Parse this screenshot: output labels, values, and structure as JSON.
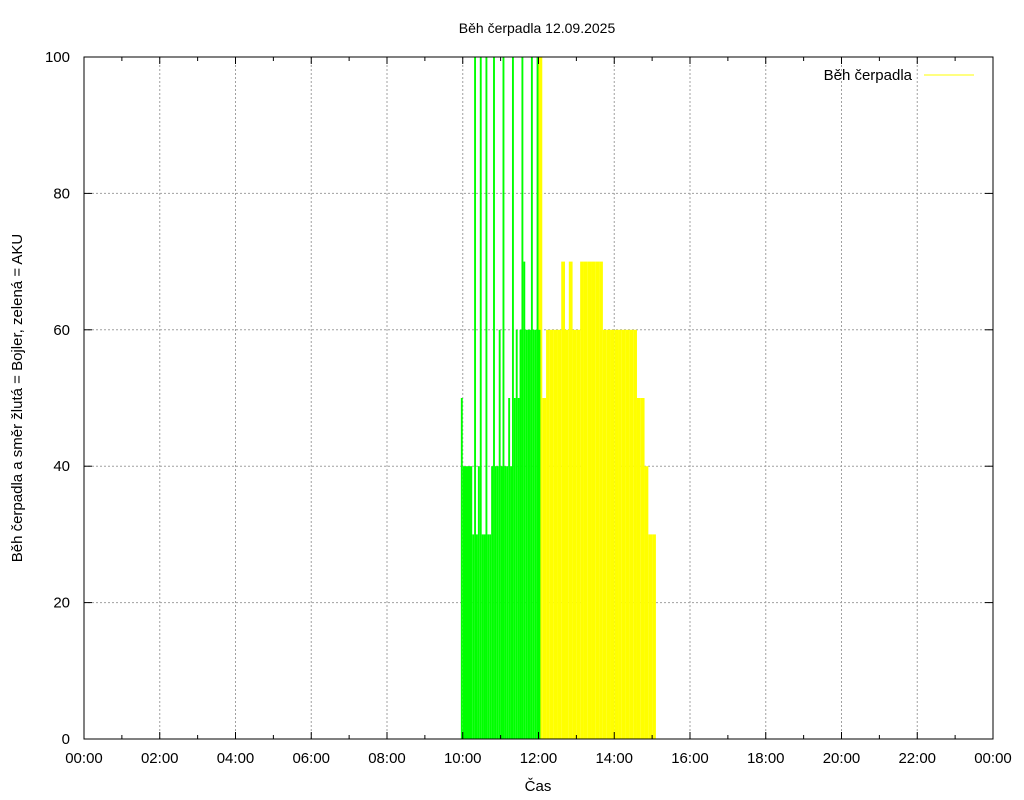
{
  "chart_data": {
    "type": "bar",
    "title": "Běh čerpadla 12.09.2025",
    "xlabel": "Čas",
    "ylabel": "Běh čerpadla a směr žlutá = Bojler, zelená = AKU",
    "x_tick_labels": [
      "00:00",
      "02:00",
      "04:00",
      "06:00",
      "08:00",
      "10:00",
      "12:00",
      "14:00",
      "16:00",
      "18:00",
      "20:00",
      "22:00",
      "00:00"
    ],
    "y_tick_labels": [
      "0",
      "20",
      "40",
      "60",
      "80",
      "100"
    ],
    "xlim_hours": [
      0,
      24
    ],
    "ylim": [
      0,
      100
    ],
    "grid": true,
    "legend_position": "top-right",
    "series": [
      {
        "name": "Běh čerpadla",
        "color": "#ffff00",
        "label_in_legend": true,
        "x_hours": [
          12.0,
          12.1,
          12.2,
          12.3,
          12.4,
          12.5,
          12.6,
          12.7,
          12.8,
          12.9,
          13.0,
          13.1,
          13.2,
          13.3,
          13.4,
          13.5,
          13.6,
          13.7,
          13.8,
          13.9,
          14.0,
          14.1,
          14.2,
          14.3,
          14.4,
          14.5,
          14.6,
          14.7,
          14.8,
          14.9,
          15.0
        ],
        "values": [
          100,
          50,
          60,
          60,
          60,
          60,
          70,
          60,
          70,
          60,
          60,
          70,
          70,
          70,
          70,
          70,
          70,
          60,
          60,
          60,
          60,
          60,
          60,
          60,
          60,
          60,
          50,
          50,
          40,
          30,
          30
        ]
      },
      {
        "name": "",
        "color": "#00ff00",
        "label_in_legend": false,
        "x_hours": [
          9.95,
          10.0,
          10.25,
          10.3,
          10.35,
          10.4,
          10.45,
          10.5,
          10.55,
          10.6,
          10.65,
          10.7,
          10.75,
          10.8,
          10.85,
          10.9,
          10.95,
          11.0,
          11.05,
          11.1,
          11.15,
          11.2,
          11.25,
          11.3,
          11.35,
          11.4,
          11.45,
          11.5,
          11.55,
          11.6,
          11.65,
          11.7,
          11.75,
          11.8,
          11.85,
          11.9,
          11.95,
          12.0
        ],
        "values": [
          50,
          40,
          30,
          100,
          30,
          40,
          100,
          30,
          30,
          100,
          30,
          30,
          40,
          100,
          40,
          40,
          60,
          40,
          100,
          40,
          40,
          50,
          40,
          100,
          50,
          60,
          50,
          60,
          100,
          70,
          60,
          60,
          60,
          100,
          60,
          60,
          100,
          60
        ]
      }
    ]
  }
}
